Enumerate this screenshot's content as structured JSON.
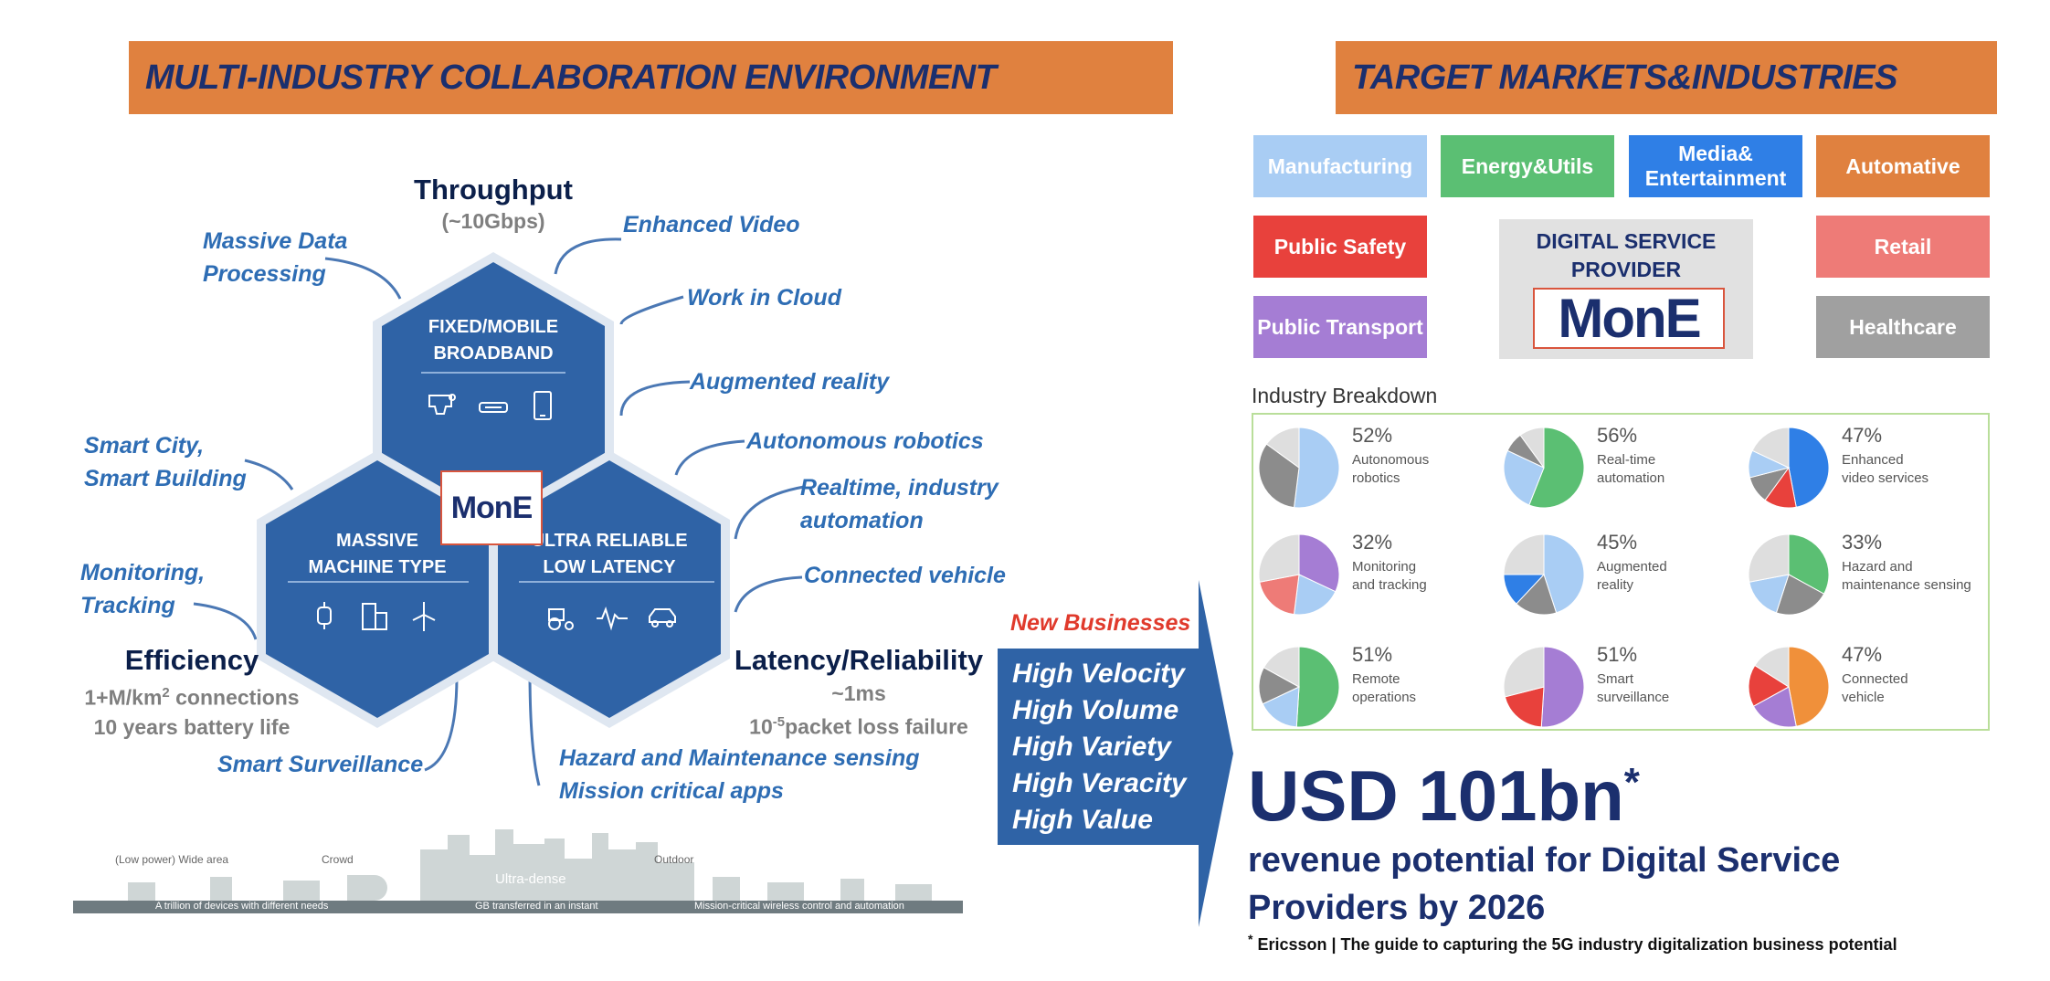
{
  "left_banner": "MULTI-INDUSTRY COLLABORATION ENVIRONMENT",
  "right_banner": "TARGET MARKETS&INDUSTRIES",
  "throughput": {
    "title": "Throughput",
    "sub": "(~10Gbps)"
  },
  "efficiency": {
    "title": "Efficiency",
    "line1_pre": "1+M/km",
    "line1_sup": "2",
    "line1_post": " connections",
    "line2": "10 years battery life"
  },
  "latency": {
    "title": "Latency/Reliability",
    "line1": "~1ms",
    "line2_pre": "10",
    "line2_sup": "-5",
    "line2_post": "packet loss failure"
  },
  "hexagons": {
    "top": {
      "line1": "FIXED/MOBILE",
      "line2": "BROADBAND",
      "icons": [
        "vr-headset-icon",
        "router-icon",
        "tablet-icon"
      ]
    },
    "left": {
      "line1": "MASSIVE",
      "line2": "MACHINE TYPE",
      "icons": [
        "smartwatch-icon",
        "buildings-icon",
        "wind-turbine-icon"
      ]
    },
    "right": {
      "line1": "ULTRA RELIABLE",
      "line2": "LOW LATENCY",
      "icons": [
        "tractor-icon",
        "heartbeat-icon",
        "car-icon"
      ]
    },
    "logo": "MonE"
  },
  "use_cases": {
    "massive_data_1": "Massive Data",
    "massive_data_2": "Processing",
    "enhanced_video": "Enhanced Video",
    "work_in_cloud": "Work in Cloud",
    "augmented_reality": "Augmented reality",
    "autonomous_robotics": "Autonomous robotics",
    "realtime_1": "Realtime, industry",
    "realtime_2": "automation",
    "connected_vehicle": "Connected vehicle",
    "smart_city_1": "Smart City,",
    "smart_city_2": "Smart Building",
    "monitoring_1": "Monitoring,",
    "monitoring_2": "Tracking",
    "smart_surveillance": "Smart Surveillance",
    "hazard": "Hazard and Maintenance sensing",
    "mission": "Mission critical apps"
  },
  "skyline": {
    "top_labels": [
      "(Low power) Wide area",
      "Crowd",
      "Ultra-dense",
      "Outdoor"
    ],
    "bottom_labels": [
      "A trillion of devices with different needs",
      "GB transferred in an instant",
      "Mission-critical wireless control and automation"
    ]
  },
  "new_businesses": {
    "title": "New Businesses",
    "items": [
      "High Velocity",
      "High Volume",
      "High Variety",
      "High Veracity",
      "High Value"
    ]
  },
  "industries": [
    {
      "label": "Manufacturing",
      "color": "#a9cdf4"
    },
    {
      "label": "Energy&Utils",
      "color": "#5bbf73"
    },
    {
      "label": "Media& Entertainment",
      "color": "#2f7fe6"
    },
    {
      "label": "Automative",
      "color": "#e0813f"
    },
    {
      "label": "Public Safety",
      "color": "#e8413c"
    },
    {
      "label": "Retail",
      "color": "#ee7b77"
    },
    {
      "label": "Public Transport",
      "color": "#a57dd4"
    },
    {
      "label": "Healthcare",
      "color": "#a0a0a0"
    }
  ],
  "dsp": {
    "title_1": "DIGITAL SERVICE",
    "title_2": "PROVIDER",
    "logo": "MonE"
  },
  "breakdown_title": "Industry Breakdown",
  "pies": [
    {
      "pct": "52%",
      "label_1": "Autonomous",
      "label_2": "robotics",
      "slices": [
        {
          "v": 52,
          "c": "#a9cdf4"
        },
        {
          "v": 33,
          "c": "#8c8c8c"
        },
        {
          "v": 15,
          "c": "#dedede"
        }
      ]
    },
    {
      "pct": "56%",
      "label_1": "Real-time",
      "label_2": "automation",
      "slices": [
        {
          "v": 56,
          "c": "#5bbf73"
        },
        {
          "v": 26,
          "c": "#a9cdf4"
        },
        {
          "v": 8,
          "c": "#8c8c8c"
        },
        {
          "v": 10,
          "c": "#dedede"
        }
      ]
    },
    {
      "pct": "47%",
      "label_1": "Enhanced",
      "label_2": "video services",
      "slices": [
        {
          "v": 47,
          "c": "#2f7fe6"
        },
        {
          "v": 13,
          "c": "#e8413c"
        },
        {
          "v": 11,
          "c": "#8c8c8c"
        },
        {
          "v": 11,
          "c": "#a9cdf4"
        },
        {
          "v": 18,
          "c": "#dedede"
        }
      ]
    },
    {
      "pct": "32%",
      "label_1": "Monitoring",
      "label_2": "and tracking",
      "slices": [
        {
          "v": 32,
          "c": "#a57dd4"
        },
        {
          "v": 20,
          "c": "#a9cdf4"
        },
        {
          "v": 20,
          "c": "#ee7b77"
        },
        {
          "v": 28,
          "c": "#dedede"
        }
      ]
    },
    {
      "pct": "45%",
      "label_1": "Augmented",
      "label_2": "reality",
      "slices": [
        {
          "v": 45,
          "c": "#a9cdf4"
        },
        {
          "v": 17,
          "c": "#8c8c8c"
        },
        {
          "v": 13,
          "c": "#2f7fe6"
        },
        {
          "v": 25,
          "c": "#dedede"
        }
      ]
    },
    {
      "pct": "33%",
      "label_1": "Hazard and",
      "label_2": "maintenance sensing",
      "slices": [
        {
          "v": 33,
          "c": "#5bbf73"
        },
        {
          "v": 22,
          "c": "#8c8c8c"
        },
        {
          "v": 17,
          "c": "#a9cdf4"
        },
        {
          "v": 28,
          "c": "#dedede"
        }
      ]
    },
    {
      "pct": "51%",
      "label_1": "Remote",
      "label_2": "operations",
      "slices": [
        {
          "v": 51,
          "c": "#5bbf73"
        },
        {
          "v": 17,
          "c": "#a9cdf4"
        },
        {
          "v": 15,
          "c": "#8c8c8c"
        },
        {
          "v": 17,
          "c": "#dedede"
        }
      ]
    },
    {
      "pct": "51%",
      "label_1": "Smart",
      "label_2": "surveillance",
      "slices": [
        {
          "v": 51,
          "c": "#a57dd4"
        },
        {
          "v": 20,
          "c": "#e8413c"
        },
        {
          "v": 29,
          "c": "#dedede"
        }
      ]
    },
    {
      "pct": "47%",
      "label_1": "Connected",
      "label_2": "vehicle",
      "slices": [
        {
          "v": 47,
          "c": "#f0903a"
        },
        {
          "v": 20,
          "c": "#a57dd4"
        },
        {
          "v": 17,
          "c": "#e8413c"
        },
        {
          "v": 16,
          "c": "#dedede"
        }
      ]
    }
  ],
  "revenue": {
    "amount": "USD 101bn",
    "asterisk": "*",
    "line1": "revenue potential for Digital Service",
    "line2": "Providers by 2026",
    "footnote_mark": "*",
    "footnote": " Ericsson | The guide to capturing the 5G industry digitalization business potential"
  }
}
